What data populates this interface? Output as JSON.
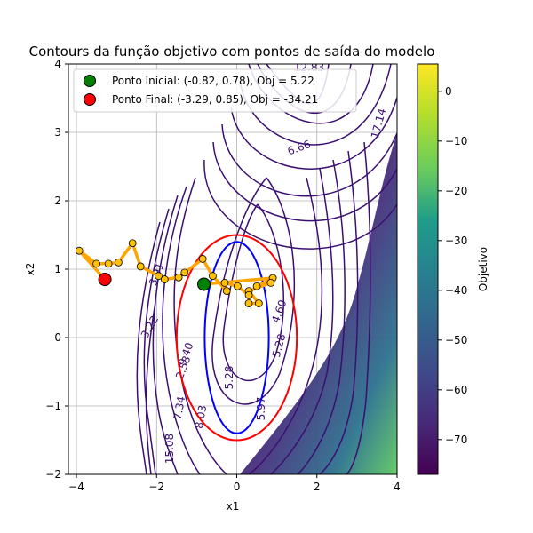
{
  "chart_data": {
    "type": "contour",
    "title": "Contours da função objetivo com pontos de saída do modelo",
    "xlabel": "x1",
    "ylabel": "x2",
    "xlim": [
      -4.2,
      4
    ],
    "ylim": [
      -2,
      4
    ],
    "xticks": [
      -4,
      -2,
      0,
      2,
      4
    ],
    "yticks": [
      -2,
      -1,
      0,
      1,
      2,
      3,
      4
    ],
    "grid": true,
    "colorbar": {
      "label": "Objetivo",
      "colormap": "viridis",
      "range": [
        -77,
        5.5
      ],
      "ticks": [
        0,
        -10,
        -20,
        -30,
        -40,
        -50,
        -60,
        -70
      ]
    },
    "contour_levels": [
      "6.66",
      "5.97",
      "5.28",
      "4.60",
      "3.91",
      "3.22",
      "2.53",
      "8.03",
      "7.34",
      "9.40",
      "5.28",
      "12.83",
      "17.14",
      "15.08"
    ],
    "constraints": [
      {
        "shape": "circle",
        "center": [
          0,
          0
        ],
        "radius": 1.5,
        "color": "#ff0000"
      },
      {
        "shape": "ellipse",
        "center": [
          0,
          0
        ],
        "rx": 0.8,
        "ry": 1.4,
        "color": "#0000ff"
      }
    ],
    "path": {
      "color": "#ffa500",
      "marker_color": "#ffc107",
      "points": [
        [
          -0.82,
          0.78
        ],
        [
          0.9,
          0.87
        ],
        [
          0.5,
          0.75
        ],
        [
          0.85,
          0.8
        ],
        [
          0.3,
          0.68
        ],
        [
          0.55,
          0.5
        ],
        [
          0.3,
          0.5
        ],
        [
          0.3,
          0.62
        ],
        [
          0.02,
          0.75
        ],
        [
          -0.3,
          0.8
        ],
        [
          -0.25,
          0.68
        ],
        [
          -0.6,
          0.9
        ],
        [
          -0.85,
          1.15
        ],
        [
          -1.3,
          0.95
        ],
        [
          -1.45,
          0.88
        ],
        [
          -1.8,
          0.85
        ],
        [
          -1.95,
          0.9
        ],
        [
          -2.4,
          1.04
        ],
        [
          -2.6,
          1.38
        ],
        [
          -2.95,
          1.1
        ],
        [
          -3.2,
          1.08
        ],
        [
          -3.5,
          1.08
        ],
        [
          -3.93,
          1.27
        ],
        [
          -3.29,
          0.85
        ]
      ]
    },
    "legend": {
      "placement": "upper-left",
      "entries": [
        {
          "label": "Ponto Inicial: (-0.82, 0.78), Obj = 5.22",
          "color": "#008000"
        },
        {
          "label": "Ponto Final: (-3.29, 0.85), Obj = -34.21",
          "color": "#ff0000"
        }
      ]
    }
  }
}
